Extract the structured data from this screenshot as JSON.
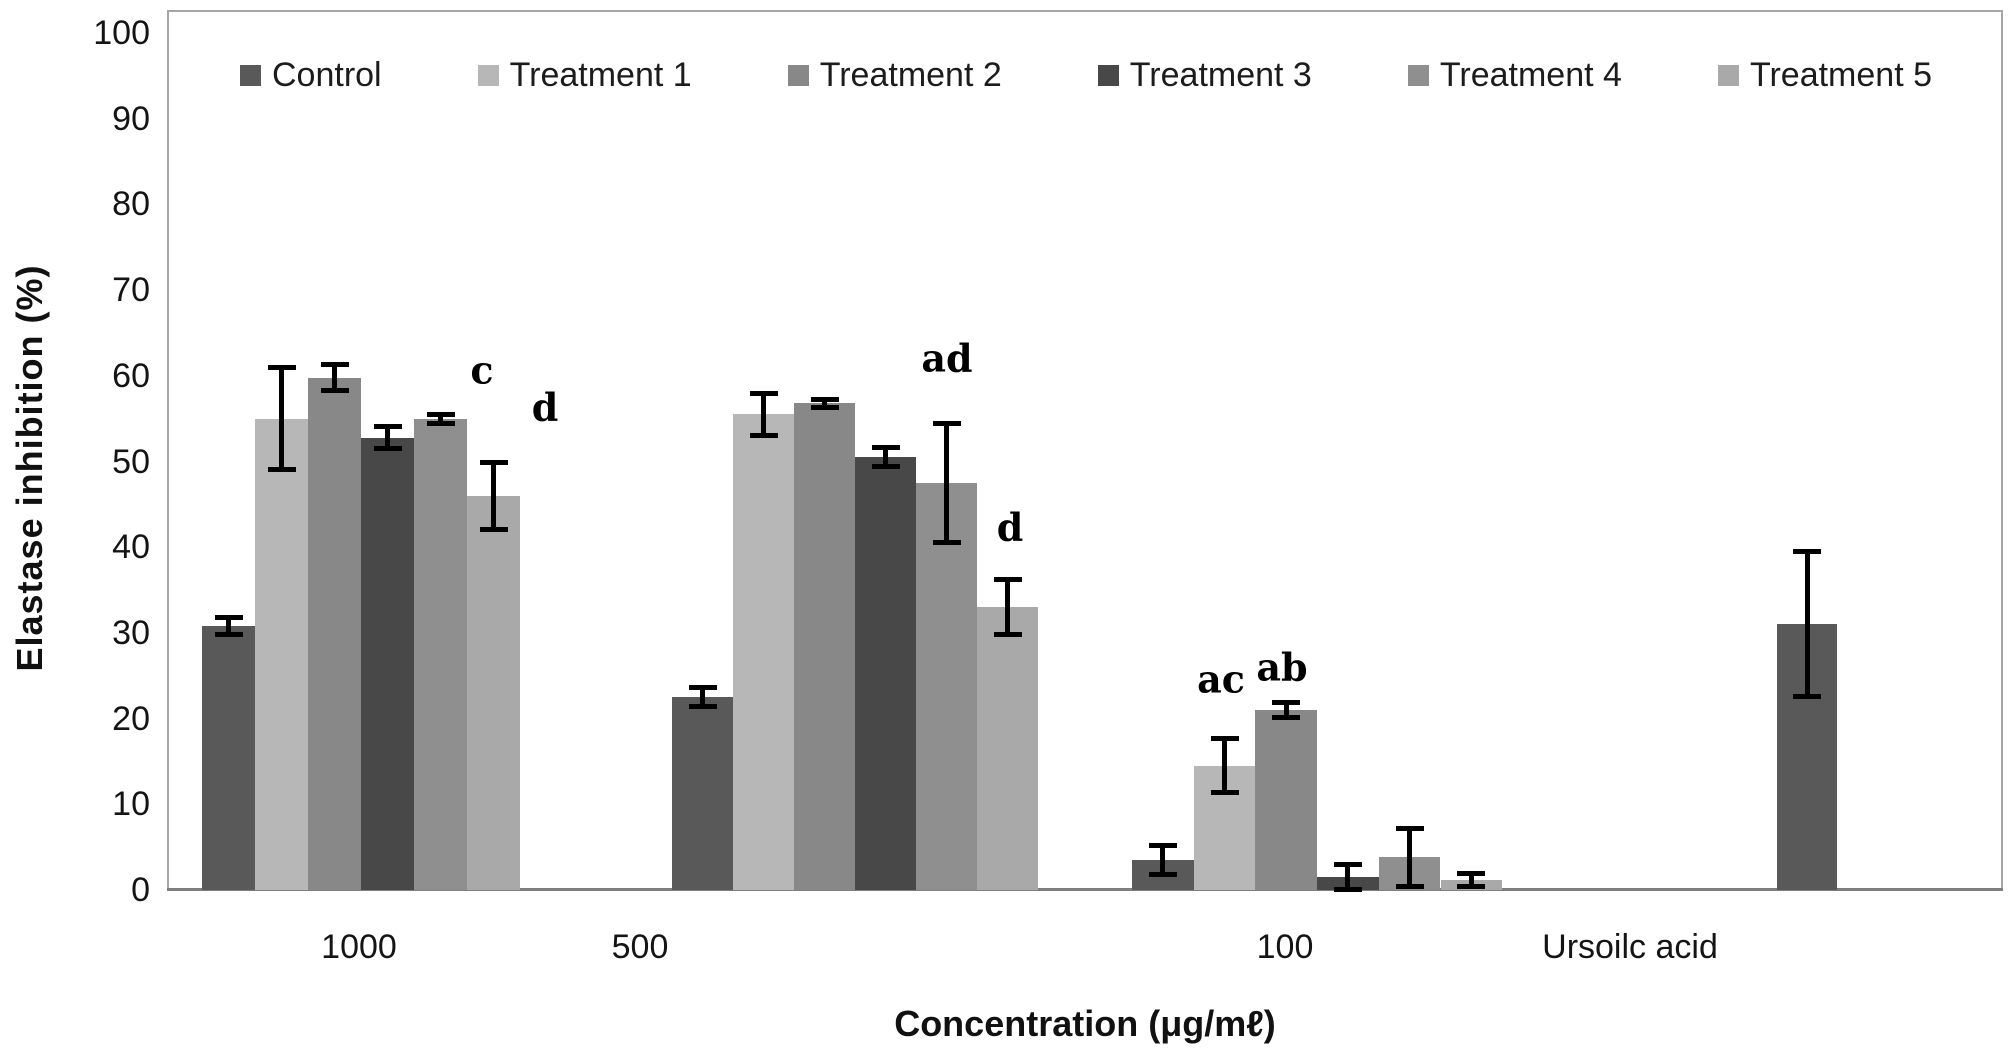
{
  "chart_data": {
    "type": "bar",
    "title": "",
    "xlabel": "Concentration (μg/mℓ)",
    "ylabel": "Elastase inhibition (%)",
    "ylim": [
      0,
      100
    ],
    "yticks": [
      0,
      10,
      20,
      30,
      40,
      50,
      60,
      70,
      80,
      90,
      100
    ],
    "grid": "off",
    "legend_position": "top",
    "error_bars": true,
    "categories": [
      "1000",
      "500",
      "100",
      "Ursoilc acid"
    ],
    "series": [
      {
        "name": "Control",
        "color": "#595959",
        "values": [
          30.8,
          22.5,
          3.5,
          31.0
        ],
        "errors": [
          1.0,
          1.2,
          1.8,
          8.5
        ]
      },
      {
        "name": "Treatment 1",
        "color": "#b7b7b7",
        "values": [
          55.0,
          55.5,
          14.5,
          null
        ],
        "errors": [
          6.0,
          2.5,
          3.2,
          null
        ]
      },
      {
        "name": "Treatment 2",
        "color": "#888888",
        "values": [
          59.8,
          56.8,
          21.0,
          null
        ],
        "errors": [
          1.6,
          0.5,
          0.9,
          null
        ]
      },
      {
        "name": "Treatment 3",
        "color": "#484848",
        "values": [
          52.8,
          50.5,
          1.5,
          null
        ],
        "errors": [
          1.3,
          1.2,
          1.5,
          null
        ]
      },
      {
        "name": "Treatment 4",
        "color": "#8f8f8f",
        "values": [
          55.0,
          47.5,
          3.8,
          null
        ],
        "errors": [
          0.6,
          7.0,
          3.4,
          null
        ]
      },
      {
        "name": "Treatment 5",
        "color": "#a9a9a9",
        "values": [
          46.0,
          33.0,
          1.2,
          null
        ],
        "errors": [
          4.0,
          3.3,
          0.8,
          null
        ]
      }
    ],
    "annotations": [
      {
        "text": "c",
        "category": "1000",
        "series": "Treatment 4"
      },
      {
        "text": "d",
        "category": "1000",
        "series": "Treatment 5"
      },
      {
        "text": "ad",
        "category": "500",
        "series": "Treatment 4"
      },
      {
        "text": "d",
        "category": "500",
        "series": "Treatment 5"
      },
      {
        "text": "ac",
        "category": "100",
        "series": "Treatment 1"
      },
      {
        "text": "ab",
        "category": "100",
        "series": "Treatment 2"
      }
    ]
  }
}
